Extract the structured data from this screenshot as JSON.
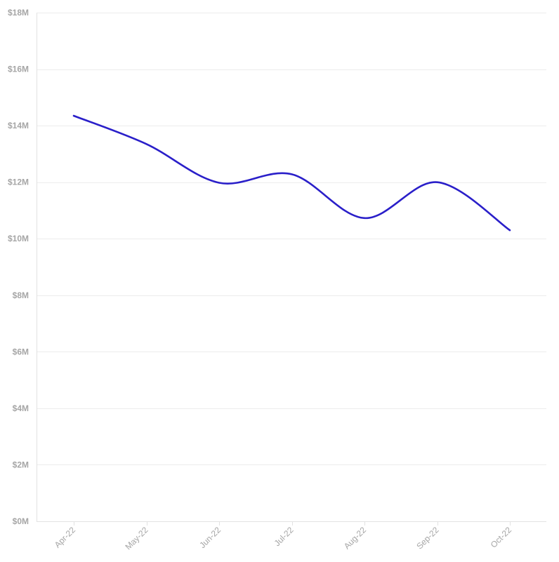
{
  "chart_data": {
    "type": "line",
    "title": "",
    "xlabel": "",
    "ylabel": "",
    "categories": [
      "Apr-22",
      "May-22",
      "Jun-22",
      "Jul-22",
      "Aug-22",
      "Sep-22",
      "Oct-22"
    ],
    "series": [
      {
        "values": [
          14.35,
          13.35,
          11.98,
          12.28,
          10.73,
          12.0,
          10.3
        ],
        "color": "#2a1fc9"
      }
    ],
    "y_unit": "millions USD",
    "ylim": [
      0,
      18
    ],
    "y_ticks": [
      0,
      2,
      4,
      6,
      8,
      10,
      12,
      14,
      16,
      18
    ],
    "y_tick_labels": [
      "$0M",
      "$2M",
      "$4M",
      "$6M",
      "$8M",
      "$10M",
      "$12M",
      "$14M",
      "$16M",
      "$18M"
    ],
    "grid": "horizontal",
    "curve": "smooth",
    "legend": "none",
    "colors": {
      "grid": "#ececec",
      "axis": "#e2e2e2",
      "tick_label": "#a6a6a6"
    }
  }
}
